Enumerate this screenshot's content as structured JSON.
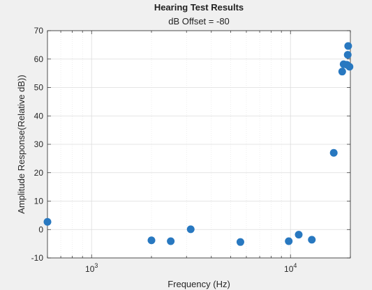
{
  "chart_data": {
    "type": "scatter",
    "title": "Hearing Test Results",
    "subtitle": "dB Offset = -80",
    "xlabel": "Frequency (Hz)",
    "ylabel": "Amplitude Response(Relative dB))",
    "xscale": "log",
    "xlim": [
      600,
      20000
    ],
    "ylim": [
      -10,
      70
    ],
    "yticks": [
      -10,
      0,
      10,
      20,
      30,
      40,
      50,
      60,
      70
    ],
    "xticks": [
      {
        "value": 1000,
        "base": "10",
        "exp": "3"
      },
      {
        "value": 10000,
        "base": "10",
        "exp": "4"
      }
    ],
    "grid": true,
    "marker_color": "#2878c0",
    "points": [
      {
        "x": 600,
        "y": 2.7
      },
      {
        "x": 2000,
        "y": -3.8
      },
      {
        "x": 2500,
        "y": -4.1
      },
      {
        "x": 3150,
        "y": 0.1
      },
      {
        "x": 5600,
        "y": -4.4
      },
      {
        "x": 9800,
        "y": -4.1
      },
      {
        "x": 11000,
        "y": -1.8
      },
      {
        "x": 12800,
        "y": -3.6
      },
      {
        "x": 16500,
        "y": 27.0
      },
      {
        "x": 18200,
        "y": 55.6
      },
      {
        "x": 18500,
        "y": 58.2
      },
      {
        "x": 19200,
        "y": 58.0
      },
      {
        "x": 19400,
        "y": 61.5
      },
      {
        "x": 19500,
        "y": 64.6
      },
      {
        "x": 19800,
        "y": 57.3
      }
    ]
  }
}
